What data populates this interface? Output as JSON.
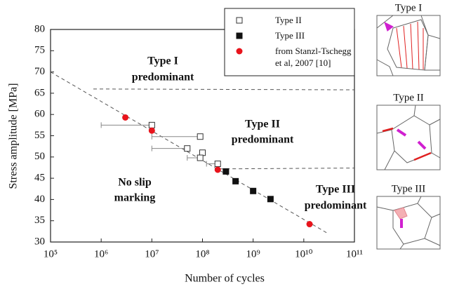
{
  "chart_data": {
    "type": "scatter",
    "xlabel": "Number of cycles",
    "ylabel": "Stress amplitude [MPa]",
    "log_x": true,
    "xlim": [
      100000,
      100000000000
    ],
    "ylim": [
      30,
      80
    ],
    "xticks": [
      {
        "value": 100000,
        "label": "10⁵"
      },
      {
        "value": 1000000,
        "label": "10⁶"
      },
      {
        "value": 10000000,
        "label": "10⁷"
      },
      {
        "value": 100000000,
        "label": "10⁸"
      },
      {
        "value": 1000000000,
        "label": "10⁹"
      },
      {
        "value": 10000000000,
        "label": "10¹⁰"
      },
      {
        "value": 100000000000,
        "label": "10¹¹"
      }
    ],
    "yticks": [
      30,
      35,
      40,
      45,
      50,
      55,
      60,
      65,
      70,
      75,
      80
    ],
    "series": [
      {
        "name": "Type II",
        "marker": "open-square",
        "color": "#333333",
        "x": [
          10000000,
          50000000,
          90000000,
          100000000,
          90000000,
          200000000
        ],
        "values": [
          57.5,
          52,
          54.8,
          51,
          49.8,
          48.4
        ],
        "x_low": [
          1000000,
          10000000,
          10000000,
          null,
          50000000,
          120000000
        ]
      },
      {
        "name": "Type III",
        "marker": "filled-square",
        "color": "#111111",
        "x": [
          290000000,
          450000000,
          1000000000,
          2200000000
        ],
        "values": [
          46.6,
          44.3,
          42,
          40.1
        ],
        "x_low": [
          null,
          null,
          null,
          null
        ]
      },
      {
        "name": "from Stanzl-Tschegg et al, 2007 [10]",
        "marker": "circle",
        "color": "#e8141c",
        "x": [
          3000000,
          10000000,
          200000000,
          13000000000
        ],
        "values": [
          59.3,
          56.2,
          47,
          34.2
        ],
        "x_low": [
          null,
          null,
          null,
          null
        ]
      }
    ],
    "lines": [
      {
        "x": [
          100000,
          30000000000
        ],
        "values": [
          70,
          32
        ]
      },
      {
        "x": [
          700000,
          100000000000
        ],
        "values": [
          66,
          65.8
        ]
      },
      {
        "x": [
          220000000,
          100000000000
        ],
        "values": [
          47.2,
          47.4
        ]
      }
    ],
    "annotations": [
      "Type I",
      "predominant",
      "Type II",
      "predominant",
      "No slip",
      "marking",
      "Type III",
      "predominant"
    ]
  },
  "panels": [
    {
      "title": "Type I"
    },
    {
      "title": "Type II"
    },
    {
      "title": "Type III"
    }
  ]
}
